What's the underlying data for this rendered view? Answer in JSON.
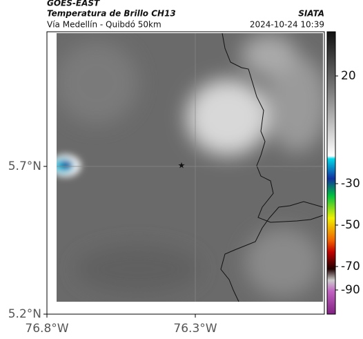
{
  "header": {
    "title": "GOES-EAST",
    "subtitle": "Temperatura de Brillo CH13",
    "route": "Vía Medellín - Quibdó 50km",
    "source": "SIATA",
    "datetime": "2024-10-24 10:39"
  },
  "map": {
    "lat_labels": [
      "5.7°N",
      "5.2°N"
    ],
    "lon_labels": [
      "76.8°W",
      "76.3°W"
    ]
  },
  "colorbar": {
    "labels": [
      "20",
      "-30",
      "-50",
      "-70",
      "-90"
    ]
  }
}
